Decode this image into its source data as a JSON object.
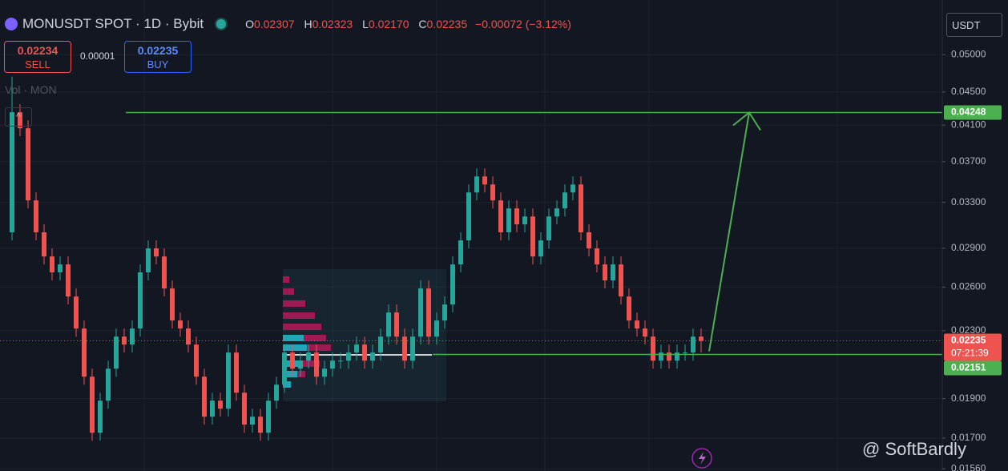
{
  "header": {
    "symbol": "MONUSDT SPOT · 1D · Bybit",
    "ohlc": [
      {
        "label": "O",
        "value": "0.02307"
      },
      {
        "label": "H",
        "value": "0.02323"
      },
      {
        "label": "L",
        "value": "0.02170"
      },
      {
        "label": "C",
        "value": "0.02235"
      }
    ],
    "change": "−0.00072 (−3.12%)",
    "indicator": "Vol · MON"
  },
  "trade": {
    "sell": {
      "price": "0.02234",
      "label": "SELL"
    },
    "spread": "0.00001",
    "buy": {
      "price": "0.02235",
      "label": "BUY"
    }
  },
  "currency": "USDT",
  "watermark": "@ SoftBardly",
  "chart_data": {
    "type": "candlestick",
    "log_scale": true,
    "grid": true,
    "up_color": "#26a69a",
    "down_color": "#ef5350",
    "level_color": "#4caf50",
    "ylim": [
      0.0155,
      0.0583
    ],
    "yticks": [
      {
        "value": 0.05,
        "label": "0.05000"
      },
      {
        "value": 0.045,
        "label": "0.04500"
      },
      {
        "value": 0.041,
        "label": "0.04100"
      },
      {
        "value": 0.037,
        "label": "0.03700"
      },
      {
        "value": 0.033,
        "label": "0.03300"
      },
      {
        "value": 0.029,
        "label": "0.02900"
      },
      {
        "value": 0.026,
        "label": "0.02600"
      },
      {
        "value": 0.023,
        "label": "0.02300"
      },
      {
        "value": 0.019,
        "label": "0.01900"
      },
      {
        "value": 0.017,
        "label": "0.01700"
      },
      {
        "value": 0.0156,
        "label": "0.01560"
      }
    ],
    "levels": [
      0.04248,
      0.02151
    ],
    "last_price": 0.02235,
    "countdown": "07:21:39",
    "categories": [
      null,
      null,
      null,
      null,
      null,
      null,
      null,
      null,
      null,
      null,
      null,
      null,
      null,
      null,
      null,
      null,
      null,
      null,
      null,
      null,
      null,
      null,
      null,
      null,
      null,
      null,
      null,
      null,
      null,
      null,
      null,
      null,
      null,
      null,
      null,
      null,
      null,
      null,
      null,
      null,
      null,
      null,
      null,
      null,
      null,
      null,
      null,
      null,
      null,
      null,
      null,
      null,
      null,
      null,
      null,
      null,
      null,
      null,
      null,
      null,
      null,
      null,
      null,
      null,
      null,
      null,
      null,
      null,
      null,
      null,
      null,
      null,
      null,
      null,
      null,
      null,
      null,
      null,
      null,
      null,
      null,
      null,
      null,
      null,
      null,
      null,
      null
    ],
    "open": [
      0.03033,
      0.04252,
      0.04064,
      0.03318,
      0.03033,
      0.02834,
      0.0271,
      0.02771,
      0.02532,
      0.02314,
      0.02021,
      0.01726,
      0.01889,
      0.02067,
      0.02262,
      0.02212,
      0.02314,
      0.0271,
      0.02899,
      0.02834,
      0.0259,
      0.02367,
      0.02314,
      0.02212,
      0.02021,
      0.01806,
      0.01889,
      0.01847,
      0.02163,
      0.01932,
      0.01766,
      0.01806,
      0.01726,
      0.01889,
      0.01976,
      0.02163,
      0.02067,
      0.02114,
      0.02163,
      0.02021,
      0.02067,
      0.02114,
      0.02114,
      0.02163,
      0.02212,
      0.02114,
      0.02163,
      0.02262,
      0.02421,
      0.02262,
      0.02114,
      0.02262,
      0.0259,
      0.02262,
      0.02367,
      0.02476,
      0.02771,
      0.02965,
      0.03393,
      0.03549,
      0.0347,
      0.03318,
      0.03033,
      0.03244,
      0.03102,
      0.03171,
      0.02834,
      0.02965,
      0.03171,
      0.03244,
      0.03393,
      0.0347,
      0.03033,
      0.02899,
      0.02771,
      0.02649,
      0.02771,
      0.02532,
      0.02367,
      0.02314,
      0.02262,
      0.02114,
      0.02163,
      0.02114,
      0.02163,
      0.02163,
      0.02262
    ],
    "high": [
      0.047,
      0.04348,
      0.04157,
      0.03393,
      0.03102,
      0.02899,
      0.02834,
      0.02834,
      0.0259,
      0.02367,
      0.02067,
      0.01932,
      0.02114,
      0.02314,
      0.02314,
      0.02367,
      0.02771,
      0.02965,
      0.02965,
      0.02899,
      0.02649,
      0.02421,
      0.02367,
      0.02262,
      0.02067,
      0.01932,
      0.01932,
      0.02212,
      0.02212,
      0.01976,
      0.01847,
      0.01847,
      0.01932,
      0.02021,
      0.02212,
      0.02212,
      0.02163,
      0.02212,
      0.02212,
      0.02114,
      0.02163,
      0.02163,
      0.02212,
      0.02262,
      0.02262,
      0.02212,
      0.02314,
      0.02476,
      0.02476,
      0.02314,
      0.02314,
      0.02649,
      0.02649,
      0.02421,
      0.02532,
      0.02834,
      0.03033,
      0.0347,
      0.03631,
      0.03631,
      0.03549,
      0.03393,
      0.03318,
      0.03318,
      0.03244,
      0.03244,
      0.03033,
      0.03244,
      0.03318,
      0.0347,
      0.03549,
      0.03549,
      0.03102,
      0.02965,
      0.02834,
      0.02834,
      0.02834,
      0.0259,
      0.02421,
      0.02367,
      0.02314,
      0.02212,
      0.02212,
      0.02212,
      0.02212,
      0.02314,
      0.02314
    ],
    "low": [
      0.02965,
      0.03975,
      0.03244,
      0.02965,
      0.02771,
      0.02649,
      0.02649,
      0.02476,
      0.02262,
      0.01976,
      0.01688,
      0.01688,
      0.01847,
      0.02021,
      0.02163,
      0.02163,
      0.02262,
      0.02649,
      0.02771,
      0.02532,
      0.02314,
      0.02262,
      0.02163,
      0.01976,
      0.01766,
      0.01766,
      0.01806,
      0.01806,
      0.01889,
      0.01726,
      0.01726,
      0.01688,
      0.01688,
      0.01847,
      0.01932,
      0.02021,
      0.02021,
      0.02067,
      0.01976,
      0.01976,
      0.02021,
      0.02067,
      0.02067,
      0.02114,
      0.02067,
      0.02067,
      0.02114,
      0.02212,
      0.02212,
      0.02067,
      0.02067,
      0.02212,
      0.02212,
      0.02212,
      0.02314,
      0.02421,
      0.0271,
      0.02899,
      0.03318,
      0.03393,
      0.03244,
      0.02965,
      0.02965,
      0.03033,
      0.03033,
      0.02771,
      0.02771,
      0.02899,
      0.03102,
      0.03171,
      0.03318,
      0.02965,
      0.02834,
      0.0271,
      0.0259,
      0.0259,
      0.02476,
      0.02314,
      0.02262,
      0.02212,
      0.02067,
      0.02067,
      0.02067,
      0.02067,
      0.02114,
      0.02114,
      0.02163
    ],
    "close": [
      0.04252,
      0.04064,
      0.03318,
      0.03033,
      0.02834,
      0.0271,
      0.02771,
      0.02532,
      0.02314,
      0.02021,
      0.01726,
      0.01889,
      0.02067,
      0.02262,
      0.02212,
      0.02314,
      0.0271,
      0.02899,
      0.02834,
      0.0259,
      0.02367,
      0.02314,
      0.02212,
      0.02021,
      0.01806,
      0.01889,
      0.01847,
      0.02163,
      0.01932,
      0.01766,
      0.01806,
      0.01726,
      0.01889,
      0.01976,
      0.02163,
      0.02067,
      0.02114,
      0.02163,
      0.02021,
      0.02067,
      0.02114,
      0.02114,
      0.02163,
      0.02212,
      0.02114,
      0.02163,
      0.02262,
      0.02421,
      0.02262,
      0.02114,
      0.02262,
      0.0259,
      0.02262,
      0.02367,
      0.02476,
      0.02771,
      0.02965,
      0.03393,
      0.03549,
      0.0347,
      0.03318,
      0.03033,
      0.03244,
      0.03102,
      0.03171,
      0.02834,
      0.02965,
      0.03171,
      0.03244,
      0.03393,
      0.0347,
      0.03033,
      0.02899,
      0.02771,
      0.02649,
      0.02771,
      0.02532,
      0.02367,
      0.02314,
      0.02262,
      0.02114,
      0.02163,
      0.02114,
      0.02163,
      0.02163,
      0.02262,
      0.02235
    ]
  }
}
